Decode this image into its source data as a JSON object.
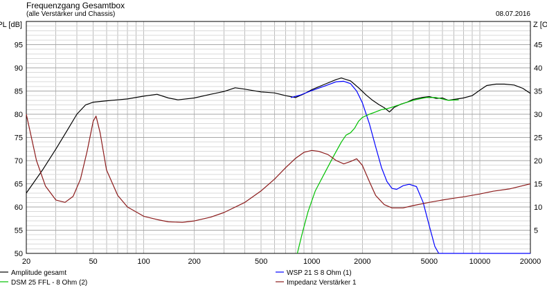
{
  "chart_data": {
    "type": "line",
    "title": "Frequenzgang Gesamtbox",
    "subtitle": "(alle Verstärker und Chassis)",
    "date": "08.07.2016",
    "ylabel_left": "SPL [dB]",
    "ylabel_right": "Z [Ohm]",
    "x_scale": "log",
    "xlim": [
      20,
      20000
    ],
    "ylim_left": [
      50,
      100
    ],
    "ylim_right": [
      0,
      50
    ],
    "grid": true,
    "x_ticks": [
      {
        "value": 20,
        "label": "20"
      },
      {
        "value": 50,
        "label": "50"
      },
      {
        "value": 100,
        "label": "100"
      },
      {
        "value": 200,
        "label": "200"
      },
      {
        "value": 500,
        "label": "500"
      },
      {
        "value": 1000,
        "label": "1000"
      },
      {
        "value": 2000,
        "label": "2000"
      },
      {
        "value": 5000,
        "label": "5000"
      },
      {
        "value": 10000,
        "label": "10000"
      },
      {
        "value": 20000,
        "label": "20000"
      }
    ],
    "y_ticks_left": [
      {
        "value": 55,
        "label": "55"
      },
      {
        "value": 60,
        "label": "60"
      },
      {
        "value": 65,
        "label": "65"
      },
      {
        "value": 70,
        "label": "70"
      },
      {
        "value": 75,
        "label": "75"
      },
      {
        "value": 80,
        "label": "80"
      },
      {
        "value": 85,
        "label": "85"
      },
      {
        "value": 90,
        "label": "90"
      },
      {
        "value": 95,
        "label": "95"
      },
      {
        "value": 50,
        "label": "50"
      }
    ],
    "y_ticks_right": [
      {
        "value": 5,
        "label": "5"
      },
      {
        "value": 10,
        "label": "10"
      },
      {
        "value": 15,
        "label": "15"
      },
      {
        "value": 20,
        "label": "20"
      },
      {
        "value": 25,
        "label": "25"
      },
      {
        "value": 30,
        "label": "30"
      },
      {
        "value": 35,
        "label": "35"
      },
      {
        "value": 40,
        "label": "40"
      },
      {
        "value": 45,
        "label": "45"
      }
    ],
    "series": [
      {
        "name": "Amplitude gesamt",
        "color": "#000000",
        "axis": "left",
        "points": [
          [
            20,
            63
          ],
          [
            25,
            68
          ],
          [
            30,
            72.5
          ],
          [
            35,
            76.5
          ],
          [
            40,
            80
          ],
          [
            45,
            82
          ],
          [
            50,
            82.6
          ],
          [
            60,
            82.9
          ],
          [
            70,
            83.1
          ],
          [
            80,
            83.3
          ],
          [
            100,
            83.9
          ],
          [
            120,
            84.3
          ],
          [
            140,
            83.5
          ],
          [
            160,
            83.1
          ],
          [
            200,
            83.5
          ],
          [
            250,
            84.3
          ],
          [
            300,
            84.9
          ],
          [
            350,
            85.7
          ],
          [
            400,
            85.4
          ],
          [
            500,
            84.8
          ],
          [
            600,
            84.6
          ],
          [
            700,
            84.0
          ],
          [
            800,
            83.6
          ],
          [
            900,
            84.4
          ],
          [
            1000,
            85.3
          ],
          [
            1200,
            86.5
          ],
          [
            1400,
            87.5
          ],
          [
            1500,
            87.8
          ],
          [
            1700,
            87.2
          ],
          [
            1900,
            85.7
          ],
          [
            2100,
            84.2
          ],
          [
            2300,
            83.0
          ],
          [
            2500,
            82.1
          ],
          [
            2700,
            81.4
          ],
          [
            2900,
            80.5
          ],
          [
            3100,
            81.5
          ],
          [
            3400,
            82.2
          ],
          [
            3700,
            82.6
          ],
          [
            4000,
            83.2
          ],
          [
            4500,
            83.6
          ],
          [
            5000,
            83.8
          ],
          [
            5500,
            83.4
          ],
          [
            6000,
            83.5
          ],
          [
            6500,
            83.0
          ],
          [
            7000,
            83.2
          ],
          [
            8000,
            83.5
          ],
          [
            9000,
            84.0
          ],
          [
            10000,
            85.2
          ],
          [
            11000,
            86.2
          ],
          [
            12500,
            86.5
          ],
          [
            14000,
            86.5
          ],
          [
            16000,
            86.3
          ],
          [
            18000,
            85.6
          ],
          [
            20000,
            84.5
          ]
        ]
      },
      {
        "name": "WSP 21 S 8 Ohm (1)",
        "color": "#0000ff",
        "axis": "left",
        "points": [
          [
            750,
            83.6
          ],
          [
            850,
            84.1
          ],
          [
            1000,
            85.1
          ],
          [
            1200,
            86.1
          ],
          [
            1400,
            87.0
          ],
          [
            1550,
            87.1
          ],
          [
            1700,
            86.6
          ],
          [
            1850,
            85.0
          ],
          [
            2000,
            82.5
          ],
          [
            2200,
            78.0
          ],
          [
            2400,
            73.0
          ],
          [
            2600,
            68.5
          ],
          [
            2800,
            65.5
          ],
          [
            3000,
            64.0
          ],
          [
            3200,
            63.8
          ],
          [
            3500,
            64.6
          ],
          [
            3800,
            64.9
          ],
          [
            4200,
            64.4
          ],
          [
            4600,
            61.0
          ],
          [
            5000,
            56.0
          ],
          [
            5400,
            51.5
          ],
          [
            5700,
            50.0
          ],
          [
            20000,
            50.0
          ]
        ]
      },
      {
        "name": "DSM 25 FFL - 8 Ohm (2)",
        "color": "#00c000",
        "axis": "left",
        "points": [
          [
            820,
            50.0
          ],
          [
            880,
            54.5
          ],
          [
            950,
            59.0
          ],
          [
            1050,
            63.5
          ],
          [
            1200,
            67.5
          ],
          [
            1350,
            71.0
          ],
          [
            1500,
            74.0
          ],
          [
            1600,
            75.5
          ],
          [
            1700,
            76.0
          ],
          [
            1800,
            77.0
          ],
          [
            1900,
            78.5
          ],
          [
            2000,
            79.3
          ],
          [
            2200,
            80.0
          ],
          [
            2400,
            80.5
          ],
          [
            2600,
            81.0
          ],
          [
            2800,
            81.2
          ],
          [
            3000,
            81.5
          ],
          [
            3300,
            82.0
          ],
          [
            3700,
            82.6
          ],
          [
            4200,
            83.2
          ],
          [
            4800,
            83.6
          ],
          [
            5500,
            83.6
          ],
          [
            6500,
            83.0
          ],
          [
            7500,
            83.1
          ]
        ]
      },
      {
        "name": "Impedanz Verstärker 1",
        "color": "#8b1a1a",
        "axis": "right",
        "points": [
          [
            20,
            30.0
          ],
          [
            23,
            20.0
          ],
          [
            26,
            14.5
          ],
          [
            30,
            11.5
          ],
          [
            34,
            11.0
          ],
          [
            38,
            12.3
          ],
          [
            42,
            16.0
          ],
          [
            46,
            22.0
          ],
          [
            50,
            28.5
          ],
          [
            52,
            29.6
          ],
          [
            55,
            26.0
          ],
          [
            60,
            18.0
          ],
          [
            70,
            12.5
          ],
          [
            80,
            10.0
          ],
          [
            100,
            8.0
          ],
          [
            120,
            7.3
          ],
          [
            140,
            6.8
          ],
          [
            170,
            6.7
          ],
          [
            200,
            7.0
          ],
          [
            250,
            7.8
          ],
          [
            300,
            8.8
          ],
          [
            400,
            11.0
          ],
          [
            500,
            13.5
          ],
          [
            600,
            16.0
          ],
          [
            700,
            18.5
          ],
          [
            800,
            20.5
          ],
          [
            900,
            21.8
          ],
          [
            1000,
            22.2
          ],
          [
            1100,
            22.0
          ],
          [
            1250,
            21.3
          ],
          [
            1400,
            20.0
          ],
          [
            1550,
            19.3
          ],
          [
            1700,
            19.8
          ],
          [
            1850,
            20.4
          ],
          [
            2000,
            19.0
          ],
          [
            2200,
            15.5
          ],
          [
            2400,
            12.5
          ],
          [
            2700,
            10.5
          ],
          [
            3000,
            9.8
          ],
          [
            3500,
            9.8
          ],
          [
            4000,
            10.3
          ],
          [
            5000,
            11.0
          ],
          [
            6000,
            11.5
          ],
          [
            7000,
            11.9
          ],
          [
            8000,
            12.2
          ],
          [
            10000,
            12.8
          ],
          [
            12000,
            13.4
          ],
          [
            15000,
            13.9
          ],
          [
            20000,
            15.0
          ]
        ]
      }
    ],
    "legend": {
      "placement": "bottom",
      "entries": [
        {
          "label": "Amplitude gesamt",
          "color": "#000000"
        },
        {
          "label": "WSP 21 S 8 Ohm (1)",
          "color": "#0000ff"
        },
        {
          "label": "DSM 25 FFL - 8 Ohm (2)",
          "color": "#00c000"
        },
        {
          "label": "Impedanz Verstärker 1",
          "color": "#8b1a1a"
        }
      ]
    }
  }
}
